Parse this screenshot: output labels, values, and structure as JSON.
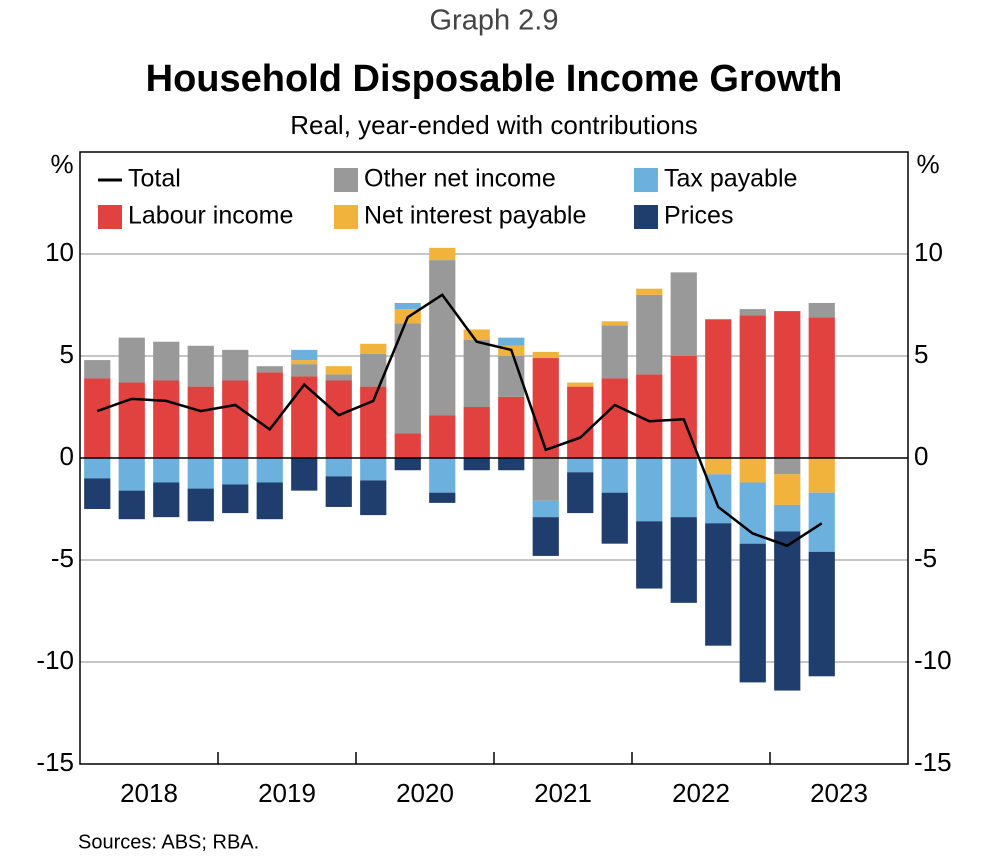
{
  "chart_data": {
    "type": "stacked_bar_line",
    "label": "Graph 2.9",
    "title": "Household Disposable Income Growth",
    "subtitle": "Real, year-ended with contributions",
    "ylabel_left": "%",
    "ylabel_right": "%",
    "source": "Sources: ABS; RBA.",
    "year_labels": [
      "2018",
      "2019",
      "2020",
      "2021",
      "2022",
      "2023"
    ],
    "categories": [
      null,
      null,
      null,
      null,
      null,
      null,
      null,
      null,
      null,
      null,
      null,
      null,
      null,
      null,
      null,
      null,
      null,
      null,
      null,
      null,
      null,
      null
    ],
    "ylim": [
      -15,
      15
    ],
    "yticks": [
      -15,
      -10,
      -5,
      0,
      5,
      10
    ],
    "grid": true,
    "series": [
      {
        "name": "Labour income",
        "type": "bar",
        "color": "#e1413f",
        "values": [
          3.9,
          3.7,
          3.8,
          3.5,
          3.8,
          4.2,
          4.0,
          3.8,
          3.5,
          1.2,
          2.1,
          2.5,
          3.0,
          4.9,
          3.5,
          3.9,
          4.1,
          5.0,
          6.8,
          7.0,
          7.2,
          6.9
        ]
      },
      {
        "name": "Other net income",
        "type": "bar",
        "color": "#999999",
        "values": [
          0.9,
          2.2,
          1.9,
          2.0,
          1.5,
          0.3,
          0.6,
          0.3,
          1.6,
          5.4,
          7.6,
          3.3,
          2.0,
          -2.1,
          0,
          2.6,
          3.9,
          4.1,
          0,
          0.3,
          -0.8,
          0.7
        ]
      },
      {
        "name": "Net interest payable",
        "type": "bar",
        "color": "#f2b33d",
        "values": [
          0,
          0,
          0,
          0,
          0,
          0,
          0.2,
          0.4,
          0.5,
          0.7,
          0.6,
          0.5,
          0.5,
          0.3,
          0.2,
          0.2,
          0.3,
          0,
          -0.8,
          -1.2,
          -1.5,
          -1.7
        ]
      },
      {
        "name": "Tax payable",
        "type": "bar",
        "color": "#6cb0de",
        "values": [
          -1.0,
          -1.6,
          -1.2,
          -1.5,
          -1.3,
          -1.2,
          0.5,
          -0.9,
          -1.1,
          0.3,
          -1.7,
          0,
          0.4,
          -0.8,
          -0.7,
          -1.7,
          -3.1,
          -2.9,
          -2.4,
          -3.0,
          -1.3,
          -2.9
        ]
      },
      {
        "name": "Prices",
        "type": "bar",
        "color": "#1f3d6d",
        "values": [
          -1.5,
          -1.4,
          -1.7,
          -1.6,
          -1.4,
          -1.8,
          -1.6,
          -1.5,
          -1.7,
          -0.6,
          -0.5,
          -0.6,
          -0.6,
          -1.9,
          -2.0,
          -2.5,
          -3.3,
          -4.2,
          -6.0,
          -6.8,
          -7.8,
          -6.1
        ]
      },
      {
        "name": "Total",
        "type": "line",
        "color": "#000000",
        "values": [
          2.3,
          2.9,
          2.8,
          2.3,
          2.6,
          1.4,
          3.6,
          2.1,
          2.8,
          6.9,
          8.0,
          5.7,
          5.3,
          0.4,
          1.0,
          2.6,
          1.8,
          1.9,
          -2.4,
          -3.7,
          -4.3,
          -3.2
        ]
      }
    ]
  }
}
